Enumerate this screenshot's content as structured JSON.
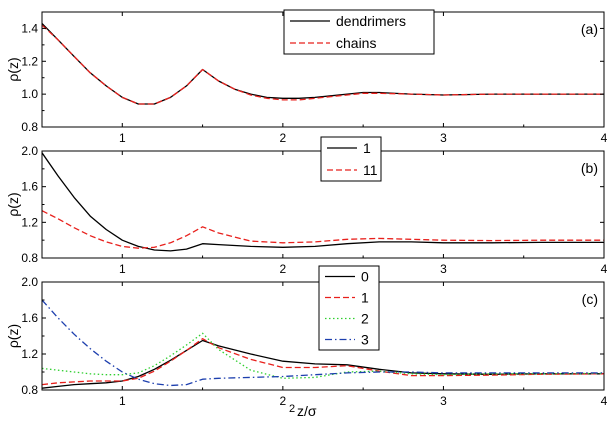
{
  "figure": {
    "xlabel_prefix": "2",
    "xlabel": "z/σ",
    "ylabel": "ρ(z)"
  },
  "chart_data": [
    {
      "type": "line",
      "panel_label": "(a)",
      "xlim": [
        0.5,
        4.0
      ],
      "ylim": [
        0.8,
        1.5
      ],
      "xticks": [
        1,
        2,
        3,
        4
      ],
      "xtick_labels": [
        "1",
        "2",
        "3",
        "4"
      ],
      "yticks": [
        0.8,
        1.0,
        1.2,
        1.4
      ],
      "ytick_labels": [
        "0.8",
        "1.0",
        "1.2",
        "1.4"
      ],
      "ylabel": "ρ(z)",
      "legend_position": "top-center",
      "series": [
        {
          "name": "dendrimers",
          "color": "#000000",
          "dash": "solid",
          "x": [
            0.5,
            0.6,
            0.7,
            0.8,
            0.9,
            1.0,
            1.1,
            1.2,
            1.3,
            1.4,
            1.5,
            1.6,
            1.7,
            1.8,
            1.9,
            2.0,
            2.1,
            2.2,
            2.3,
            2.4,
            2.5,
            2.6,
            2.8,
            3.0,
            3.3,
            3.6,
            4.0
          ],
          "y": [
            1.43,
            1.33,
            1.23,
            1.13,
            1.05,
            0.98,
            0.94,
            0.94,
            0.98,
            1.05,
            1.15,
            1.08,
            1.03,
            1.0,
            0.98,
            0.975,
            0.975,
            0.98,
            0.99,
            1.0,
            1.01,
            1.01,
            1.0,
            0.995,
            1.0,
            1.0,
            1.0
          ]
        },
        {
          "name": "chains",
          "color": "#e8201c",
          "dash": "dashed",
          "x": [
            0.5,
            0.6,
            0.7,
            0.8,
            0.9,
            1.0,
            1.1,
            1.2,
            1.3,
            1.4,
            1.5,
            1.6,
            1.7,
            1.8,
            1.9,
            2.0,
            2.1,
            2.2,
            2.3,
            2.4,
            2.5,
            2.6,
            2.8,
            3.0,
            3.3,
            3.6,
            4.0
          ],
          "y": [
            1.42,
            1.33,
            1.23,
            1.13,
            1.05,
            0.98,
            0.94,
            0.94,
            0.98,
            1.05,
            1.15,
            1.08,
            1.03,
            0.995,
            0.975,
            0.965,
            0.965,
            0.975,
            0.985,
            0.995,
            1.005,
            1.005,
            1.0,
            0.995,
            1.0,
            1.0,
            1.0
          ]
        }
      ]
    },
    {
      "type": "line",
      "panel_label": "(b)",
      "xlim": [
        0.5,
        4.0
      ],
      "ylim": [
        0.8,
        2.0
      ],
      "xticks": [
        1,
        2,
        3,
        4
      ],
      "xtick_labels": [
        "1",
        "2",
        "3",
        "4"
      ],
      "yticks": [
        0.8,
        1.2,
        1.6,
        2.0
      ],
      "ytick_labels": [
        "0.8",
        "1.2",
        "1.6",
        "2.0"
      ],
      "ylabel": "ρ(z)",
      "legend_position": "top-center",
      "series": [
        {
          "name": "1",
          "color": "#000000",
          "dash": "solid",
          "x": [
            0.5,
            0.6,
            0.7,
            0.8,
            0.9,
            1.0,
            1.1,
            1.2,
            1.3,
            1.4,
            1.5,
            1.6,
            1.8,
            2.0,
            2.2,
            2.4,
            2.6,
            2.8,
            3.0,
            3.3,
            3.6,
            4.0
          ],
          "y": [
            1.98,
            1.72,
            1.48,
            1.27,
            1.12,
            1.0,
            0.93,
            0.89,
            0.88,
            0.9,
            0.96,
            0.95,
            0.93,
            0.92,
            0.93,
            0.96,
            0.98,
            0.98,
            0.97,
            0.97,
            0.975,
            0.975
          ]
        },
        {
          "name": "11",
          "color": "#e8201c",
          "dash": "dashed",
          "x": [
            0.5,
            0.6,
            0.7,
            0.8,
            0.9,
            1.0,
            1.1,
            1.2,
            1.3,
            1.4,
            1.5,
            1.6,
            1.8,
            2.0,
            2.2,
            2.4,
            2.6,
            2.8,
            3.0,
            3.3,
            3.6,
            4.0
          ],
          "y": [
            1.33,
            1.24,
            1.14,
            1.05,
            0.98,
            0.93,
            0.91,
            0.92,
            0.97,
            1.05,
            1.15,
            1.08,
            0.99,
            0.97,
            0.98,
            1.01,
            1.02,
            1.01,
            1.0,
            0.995,
            1.0,
            1.0
          ]
        }
      ]
    },
    {
      "type": "line",
      "panel_label": "(c)",
      "xlim": [
        0.5,
        4.0
      ],
      "ylim": [
        0.8,
        2.0
      ],
      "xticks": [
        1,
        2,
        3,
        4
      ],
      "xtick_labels": [
        "1",
        "2",
        "3",
        "4"
      ],
      "yticks": [
        0.8,
        1.2,
        1.6,
        2.0
      ],
      "ytick_labels": [
        "0.8",
        "1.2",
        "1.6",
        "2.0"
      ],
      "ylabel": "ρ(z)",
      "legend_position": "top-center",
      "series": [
        {
          "name": "0",
          "color": "#000000",
          "dash": "solid",
          "x": [
            0.5,
            0.6,
            0.7,
            0.8,
            0.9,
            1.0,
            1.1,
            1.2,
            1.3,
            1.4,
            1.5,
            1.6,
            1.8,
            2.0,
            2.2,
            2.4,
            2.6,
            2.8,
            3.0,
            3.3,
            3.6,
            4.0
          ],
          "y": [
            0.82,
            0.84,
            0.86,
            0.87,
            0.88,
            0.9,
            0.95,
            1.03,
            1.13,
            1.24,
            1.35,
            1.29,
            1.2,
            1.12,
            1.09,
            1.08,
            1.03,
            0.99,
            0.98,
            0.975,
            0.98,
            0.98
          ]
        },
        {
          "name": "1",
          "color": "#e8201c",
          "dash": "dashed",
          "x": [
            0.5,
            0.6,
            0.7,
            0.8,
            0.9,
            1.0,
            1.1,
            1.2,
            1.3,
            1.4,
            1.5,
            1.6,
            1.8,
            2.0,
            2.2,
            2.4,
            2.6,
            2.8,
            3.0,
            3.3,
            3.6,
            4.0
          ],
          "y": [
            0.86,
            0.88,
            0.89,
            0.9,
            0.9,
            0.9,
            0.93,
            1.01,
            1.12,
            1.24,
            1.37,
            1.27,
            1.14,
            1.05,
            1.05,
            1.07,
            1.01,
            0.96,
            0.96,
            0.965,
            0.975,
            0.98
          ]
        },
        {
          "name": "2",
          "color": "#2fcf2f",
          "dash": "dotted",
          "x": [
            0.5,
            0.6,
            0.7,
            0.8,
            0.9,
            1.0,
            1.1,
            1.2,
            1.3,
            1.4,
            1.5,
            1.6,
            1.8,
            2.0,
            2.2,
            2.4,
            2.6,
            2.8,
            3.0,
            3.3,
            3.6,
            4.0
          ],
          "y": [
            1.04,
            1.02,
            1.0,
            0.98,
            0.97,
            0.97,
            0.99,
            1.07,
            1.18,
            1.3,
            1.43,
            1.25,
            1.02,
            0.93,
            0.94,
            1.0,
            1.01,
            0.98,
            0.97,
            0.98,
            0.98,
            0.985
          ]
        },
        {
          "name": "3",
          "color": "#1d3fae",
          "dash": "dashdot",
          "x": [
            0.5,
            0.6,
            0.7,
            0.8,
            0.9,
            1.0,
            1.1,
            1.2,
            1.3,
            1.4,
            1.5,
            1.6,
            1.8,
            2.0,
            2.2,
            2.4,
            2.6,
            2.8,
            3.0,
            3.3,
            3.6,
            4.0
          ],
          "y": [
            1.8,
            1.6,
            1.42,
            1.26,
            1.12,
            1.0,
            0.92,
            0.87,
            0.85,
            0.86,
            0.92,
            0.93,
            0.94,
            0.95,
            0.97,
            0.99,
            1.0,
            1.0,
            0.99,
            0.99,
            0.99,
            0.99
          ]
        }
      ]
    }
  ]
}
